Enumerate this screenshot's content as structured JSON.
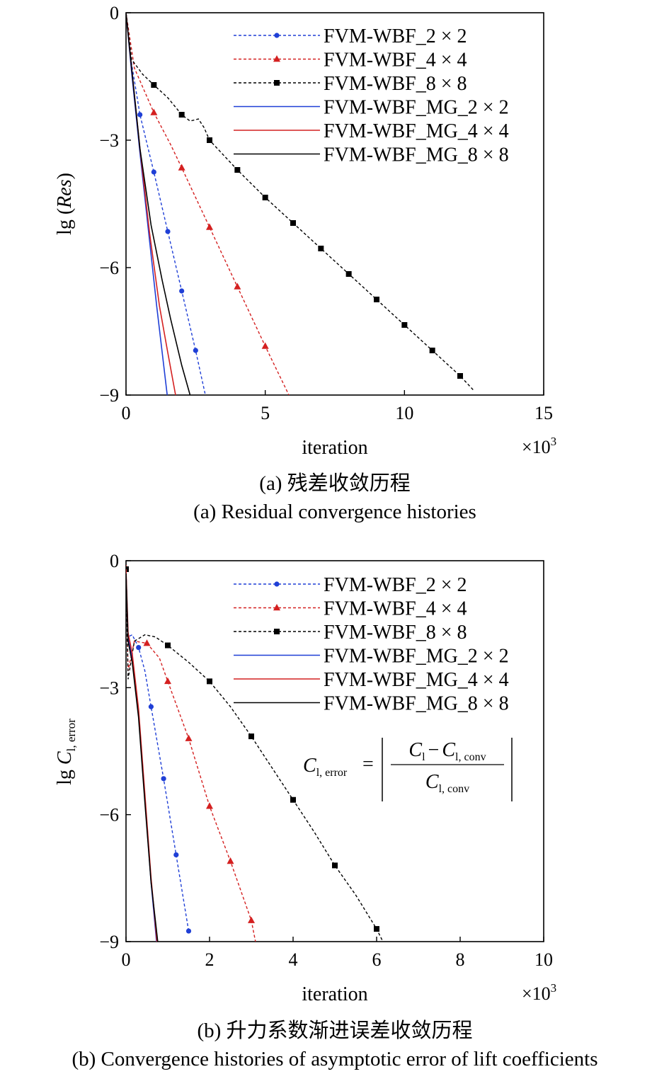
{
  "charts": [
    {
      "type": "line",
      "ylabel_main": "lg (",
      "ylabel_italic": "Res",
      "ylabel_close": ")",
      "xlabel": "iteration",
      "x_multiplier_base": "×10",
      "x_multiplier_exp": "3",
      "xlim": [
        0,
        15
      ],
      "ylim": [
        -9,
        0
      ],
      "xticks": [
        "0",
        "5",
        "10",
        "15"
      ],
      "yticks": [
        "0",
        "−3",
        "−6",
        "−9"
      ],
      "caption_cn": "(a) 残差收敛历程",
      "caption_en": "(a) Residual convergence histories",
      "colors": {
        "blue": "#1f3fd6",
        "red": "#d42020",
        "black": "#000000"
      },
      "series": [
        {
          "name": "FVM-WBF_2 × 2",
          "color": "#1f3fd6",
          "style": "dashed",
          "marker": "circle",
          "x": [
            0,
            0.2,
            0.5,
            1.0,
            1.5,
            2.0,
            2.5,
            2.85
          ],
          "y": [
            0,
            -1.2,
            -2.4,
            -3.75,
            -5.15,
            -6.55,
            -7.95,
            -9.0
          ],
          "marker_x": [
            0.5,
            1.0,
            1.5,
            2.0,
            2.5
          ],
          "marker_y": [
            -2.4,
            -3.75,
            -5.15,
            -6.55,
            -7.95
          ]
        },
        {
          "name": "FVM-WBF_4 × 4",
          "color": "#d42020",
          "style": "dashed",
          "marker": "triangle",
          "x": [
            0,
            0.3,
            1.0,
            1.6,
            2.0,
            3.0,
            4.0,
            5.0,
            5.85
          ],
          "y": [
            0,
            -1.3,
            -2.35,
            -3.1,
            -3.65,
            -5.05,
            -6.45,
            -7.85,
            -9.0
          ],
          "marker_x": [
            1.0,
            2.0,
            3.0,
            4.0,
            5.0
          ],
          "marker_y": [
            -2.35,
            -3.65,
            -5.05,
            -6.45,
            -7.85
          ]
        },
        {
          "name": "FVM-WBF_8 × 8",
          "color": "#000000",
          "style": "dashed",
          "marker": "square",
          "x": [
            0,
            0.2,
            0.6,
            1.0,
            1.5,
            2.0,
            2.3,
            2.6,
            2.8,
            3.0,
            4.0,
            5.0,
            6.0,
            7.0,
            8.0,
            9.0,
            10.0,
            11.0,
            12.0,
            12.5
          ],
          "y": [
            0,
            -1.1,
            -1.45,
            -1.7,
            -2.0,
            -2.4,
            -2.55,
            -2.5,
            -2.7,
            -3.0,
            -3.7,
            -4.35,
            -4.95,
            -5.55,
            -6.15,
            -6.75,
            -7.35,
            -7.95,
            -8.55,
            -8.9
          ],
          "marker_x": [
            1.0,
            2.0,
            3.0,
            4.0,
            5.0,
            6.0,
            7.0,
            8.0,
            9.0,
            10.0,
            11.0,
            12.0
          ],
          "marker_y": [
            -1.7,
            -2.4,
            -3.0,
            -3.7,
            -4.35,
            -4.95,
            -5.55,
            -6.15,
            -6.75,
            -7.35,
            -7.95,
            -8.55
          ]
        },
        {
          "name": "FVM-WBF_MG_2 × 2",
          "color": "#1f3fd6",
          "style": "solid",
          "x": [
            0,
            0.2,
            0.5,
            0.8,
            1.1,
            1.48
          ],
          "y": [
            0,
            -1.4,
            -3.3,
            -5.1,
            -6.9,
            -9.0
          ]
        },
        {
          "name": "FVM-WBF_MG_4 × 4",
          "color": "#d42020",
          "style": "solid",
          "x": [
            0,
            0.2,
            0.5,
            0.85,
            1.2,
            1.5,
            1.78
          ],
          "y": [
            0,
            -1.3,
            -3.2,
            -5.2,
            -6.9,
            -8.0,
            -9.0
          ]
        },
        {
          "name": "FVM-WBF_MG_8 × 8",
          "color": "#000000",
          "style": "solid",
          "x": [
            0,
            0.2,
            0.5,
            0.9,
            1.3,
            1.6,
            2.0,
            2.3
          ],
          "y": [
            0,
            -1.3,
            -3.2,
            -5.0,
            -6.3,
            -7.2,
            -8.3,
            -9.0
          ]
        }
      ]
    },
    {
      "type": "line",
      "ylabel_main": "lg ",
      "ylabel_italic": "C",
      "ylabel_sub": "l, error",
      "xlabel": "iteration",
      "x_multiplier_base": "×10",
      "x_multiplier_exp": "3",
      "xlim": [
        0,
        10
      ],
      "ylim": [
        -9,
        0
      ],
      "xticks": [
        "0",
        "2",
        "4",
        "6",
        "8",
        "10"
      ],
      "yticks": [
        "0",
        "−3",
        "−6",
        "−9"
      ],
      "caption_cn": "(b) 升力系数渐进误差收敛历程",
      "caption_en": "(b) Convergence histories of asymptotic error of lift coefficients",
      "formula": {
        "lhs_main": "C",
        "lhs_sub": "l, error",
        "equals": "=",
        "num_a": "C",
        "num_a_sub": "l",
        "minus": "−",
        "num_b": "C",
        "num_b_sub": "l, conv",
        "den": "C",
        "den_sub": "l, conv"
      },
      "series": [
        {
          "name": "FVM-WBF_2 × 2",
          "color": "#1f3fd6",
          "style": "dashed",
          "marker": "circle",
          "x": [
            0,
            0.05,
            0.15,
            0.3,
            0.45,
            0.6,
            0.9,
            1.2,
            1.5
          ],
          "y": [
            -0.2,
            -1.8,
            -1.75,
            -2.05,
            -2.6,
            -3.45,
            -5.15,
            -6.95,
            -8.75
          ],
          "marker_x": [
            0.3,
            0.6,
            0.9,
            1.2,
            1.5
          ],
          "marker_y": [
            -2.05,
            -3.45,
            -5.15,
            -6.95,
            -8.75
          ]
        },
        {
          "name": "FVM-WBF_4 × 4",
          "color": "#d42020",
          "style": "dashed",
          "marker": "triangle",
          "x": [
            0,
            0.05,
            0.2,
            0.5,
            0.8,
            1.0,
            1.5,
            2.0,
            2.5,
            3.0,
            3.1
          ],
          "y": [
            -0.1,
            -2.6,
            -1.9,
            -1.95,
            -2.3,
            -2.85,
            -4.2,
            -5.8,
            -7.1,
            -8.5,
            -9.0
          ],
          "marker_x": [
            0.5,
            1.0,
            1.5,
            2.0,
            2.5,
            3.0
          ],
          "marker_y": [
            -1.95,
            -2.85,
            -4.2,
            -5.8,
            -7.1,
            -8.5
          ]
        },
        {
          "name": "FVM-WBF_8 × 8",
          "color": "#000000",
          "style": "dashed",
          "marker": "square",
          "x": [
            0,
            0.05,
            0.2,
            0.45,
            0.7,
            1.0,
            1.5,
            2.0,
            2.5,
            3.0,
            3.5,
            4.0,
            4.5,
            5.0,
            5.5,
            6.0,
            6.15
          ],
          "y": [
            -0.2,
            -2.8,
            -1.9,
            -1.75,
            -1.8,
            -2.0,
            -2.4,
            -2.85,
            -3.45,
            -4.15,
            -4.9,
            -5.65,
            -6.4,
            -7.2,
            -7.9,
            -8.7,
            -9.0
          ],
          "marker_x": [
            0,
            1.0,
            2.0,
            3.0,
            4.0,
            5.0,
            6.0
          ],
          "marker_y": [
            -0.2,
            -2.0,
            -2.85,
            -4.15,
            -5.65,
            -7.2,
            -8.7
          ]
        },
        {
          "name": "FVM-WBF_MG_2 × 2",
          "color": "#1f3fd6",
          "style": "solid",
          "x": [
            0,
            0.05,
            0.15,
            0.3,
            0.45,
            0.6,
            0.73
          ],
          "y": [
            -0.3,
            -1.8,
            -2.3,
            -3.6,
            -5.6,
            -7.6,
            -9.0
          ]
        },
        {
          "name": "FVM-WBF_MG_4 × 4",
          "color": "#d42020",
          "style": "solid",
          "x": [
            0,
            0.05,
            0.15,
            0.3,
            0.45,
            0.6,
            0.74
          ],
          "y": [
            -0.2,
            -1.7,
            -2.2,
            -3.5,
            -5.5,
            -7.5,
            -9.0
          ]
        },
        {
          "name": "FVM-WBF_MG_8 × 8",
          "color": "#000000",
          "style": "solid",
          "x": [
            0,
            0.05,
            0.15,
            0.3,
            0.45,
            0.6,
            0.76
          ],
          "y": [
            -0.3,
            -1.9,
            -2.4,
            -3.7,
            -5.7,
            -7.6,
            -9.0
          ]
        }
      ]
    }
  ]
}
